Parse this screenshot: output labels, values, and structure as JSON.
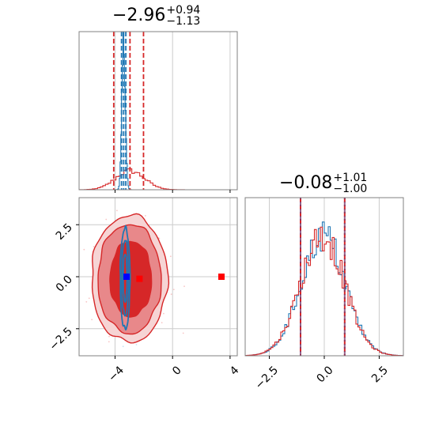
{
  "titles": {
    "param1": {
      "value": "−2.96",
      "plus": "+0.94",
      "minus": "−1.13"
    },
    "param2": {
      "value": "−0.08",
      "plus": "+1.01",
      "minus": "−1.00"
    }
  },
  "colors": {
    "blue": "#1f77b4",
    "red": "#d62728",
    "red_fill_dark": "#d62728",
    "red_fill_mid": "#e8888a",
    "red_fill_light": "#f6d4d4",
    "marker_blue": "#0000ff",
    "marker_red": "#ff0000",
    "grid": "#cccccc",
    "dashed_purple": "#7a3a6a"
  },
  "chart_data": {
    "type": "corner",
    "panels": [
      {
        "kind": "histogram-1d",
        "xlim": [
          -6.5,
          4.5
        ],
        "xticks": [
          -4,
          0,
          4
        ],
        "tick_labels_shown": false,
        "series": [
          {
            "name": "",
            "color": "blue",
            "center": -3.4,
            "sigma": 0.12,
            "dashed_lines": [
              -3.55,
              -3.4,
              -3.25
            ]
          },
          {
            "name": "",
            "color": "red",
            "center": -2.96,
            "sigma": 1.0,
            "dashed_lines": [
              -4.09,
              -2.96,
              -2.02
            ]
          }
        ]
      },
      {
        "kind": "contour-2d",
        "xlim": [
          -6.5,
          4.5
        ],
        "ylim": [
          -3.8,
          3.8
        ],
        "xticks": [
          -4,
          0,
          4
        ],
        "xtick_labels": [
          "−4",
          "0",
          "4"
        ],
        "yticks": [
          -2.5,
          0.0,
          2.5
        ],
        "ytick_labels": [
          "−2.5",
          "0.0",
          "2.5"
        ],
        "series": [
          {
            "name": "",
            "color": "red",
            "center": [
              -3.0,
              -0.1
            ],
            "sigma": [
              1.1,
              1.05
            ],
            "filled": true
          },
          {
            "name": "",
            "color": "blue",
            "center": [
              -3.3,
              -0.1
            ],
            "sigma": [
              0.13,
              0.95
            ],
            "filled": false
          }
        ],
        "markers": [
          {
            "color": "marker_blue",
            "x": -3.2,
            "y": 0.0
          },
          {
            "color": "marker_red",
            "x": -2.3,
            "y": -0.1
          },
          {
            "color": "marker_red",
            "x": 3.4,
            "y": 0.0
          }
        ]
      },
      {
        "kind": "histogram-1d",
        "xlim": [
          -3.6,
          3.6
        ],
        "xticks": [
          -2.5,
          0.0,
          2.5
        ],
        "xtick_labels": [
          "−2.5",
          "0.0",
          "2.5"
        ],
        "series": [
          {
            "name": "",
            "color": "blue",
            "center": -0.05,
            "sigma": 1.0
          },
          {
            "name": "",
            "color": "red",
            "center": -0.08,
            "sigma": 1.0
          }
        ],
        "dashed_lines": [
          -1.08,
          0.93
        ]
      }
    ]
  }
}
